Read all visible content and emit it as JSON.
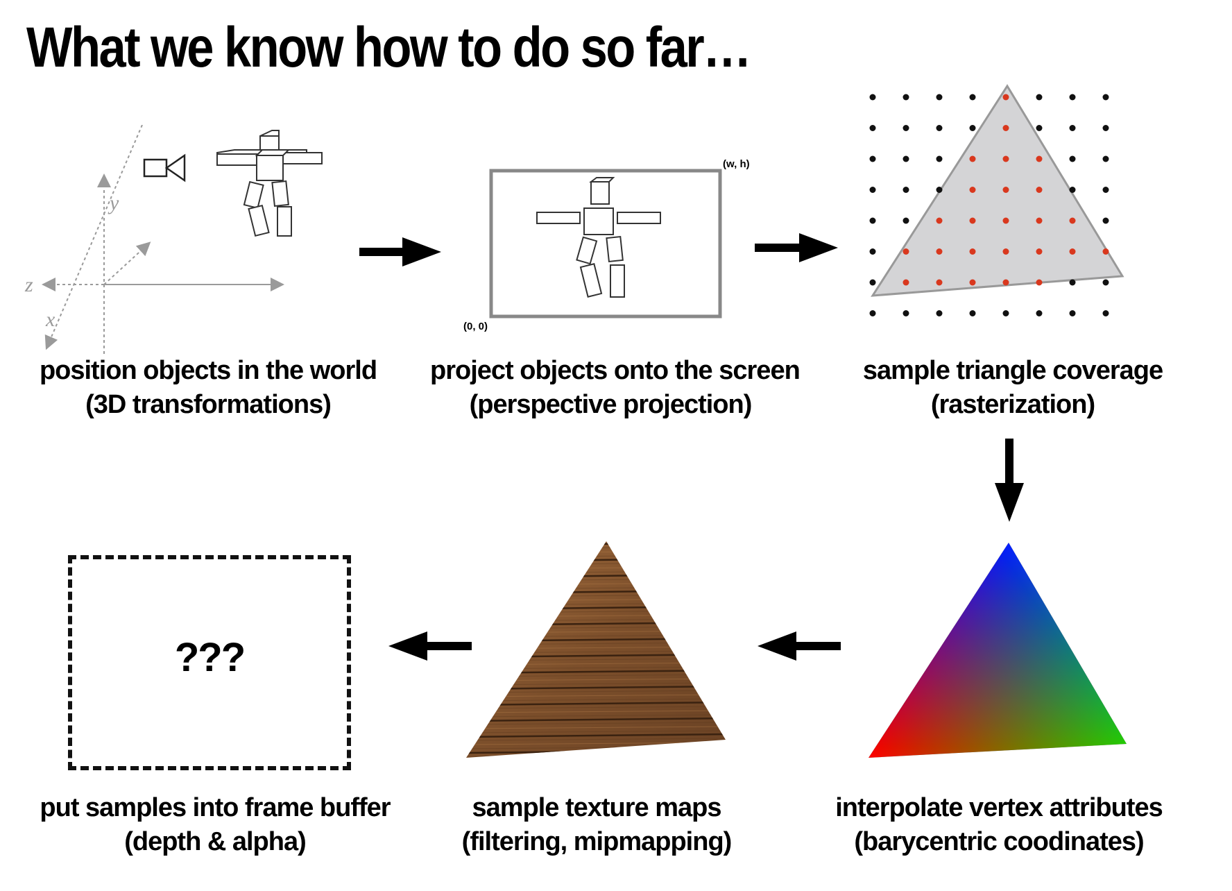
{
  "slide": {
    "title": "What we know how to do so far…"
  },
  "steps": [
    {
      "line1": "position objects in the world",
      "line2": "(3D transformations)"
    },
    {
      "line1": "project objects onto the screen",
      "line2": "(perspective projection)"
    },
    {
      "line1": "sample triangle coverage",
      "line2": "(rasterization)"
    },
    {
      "line1": "interpolate vertex attributes",
      "line2": "(barycentric coodinates)"
    },
    {
      "line1": "sample texture maps",
      "line2": "(filtering, mipmapping)"
    },
    {
      "line1": "put samples into frame buffer",
      "line2": "(depth & alpha)"
    }
  ],
  "axes": {
    "x": "x",
    "y": "y",
    "z": "z"
  },
  "screen": {
    "origin_label": "(0, 0)",
    "corner_label": "(w, h)"
  },
  "framebuffer": {
    "placeholder": "???"
  },
  "colors": {
    "sample_inside": "#d9381e",
    "sample_outside": "#111111",
    "triangle_fill": "#d4d4d6",
    "vertex_red": "#ff0000",
    "vertex_green": "#22cc00",
    "vertex_blue": "#0000ff",
    "wood": "#8a5a32"
  }
}
